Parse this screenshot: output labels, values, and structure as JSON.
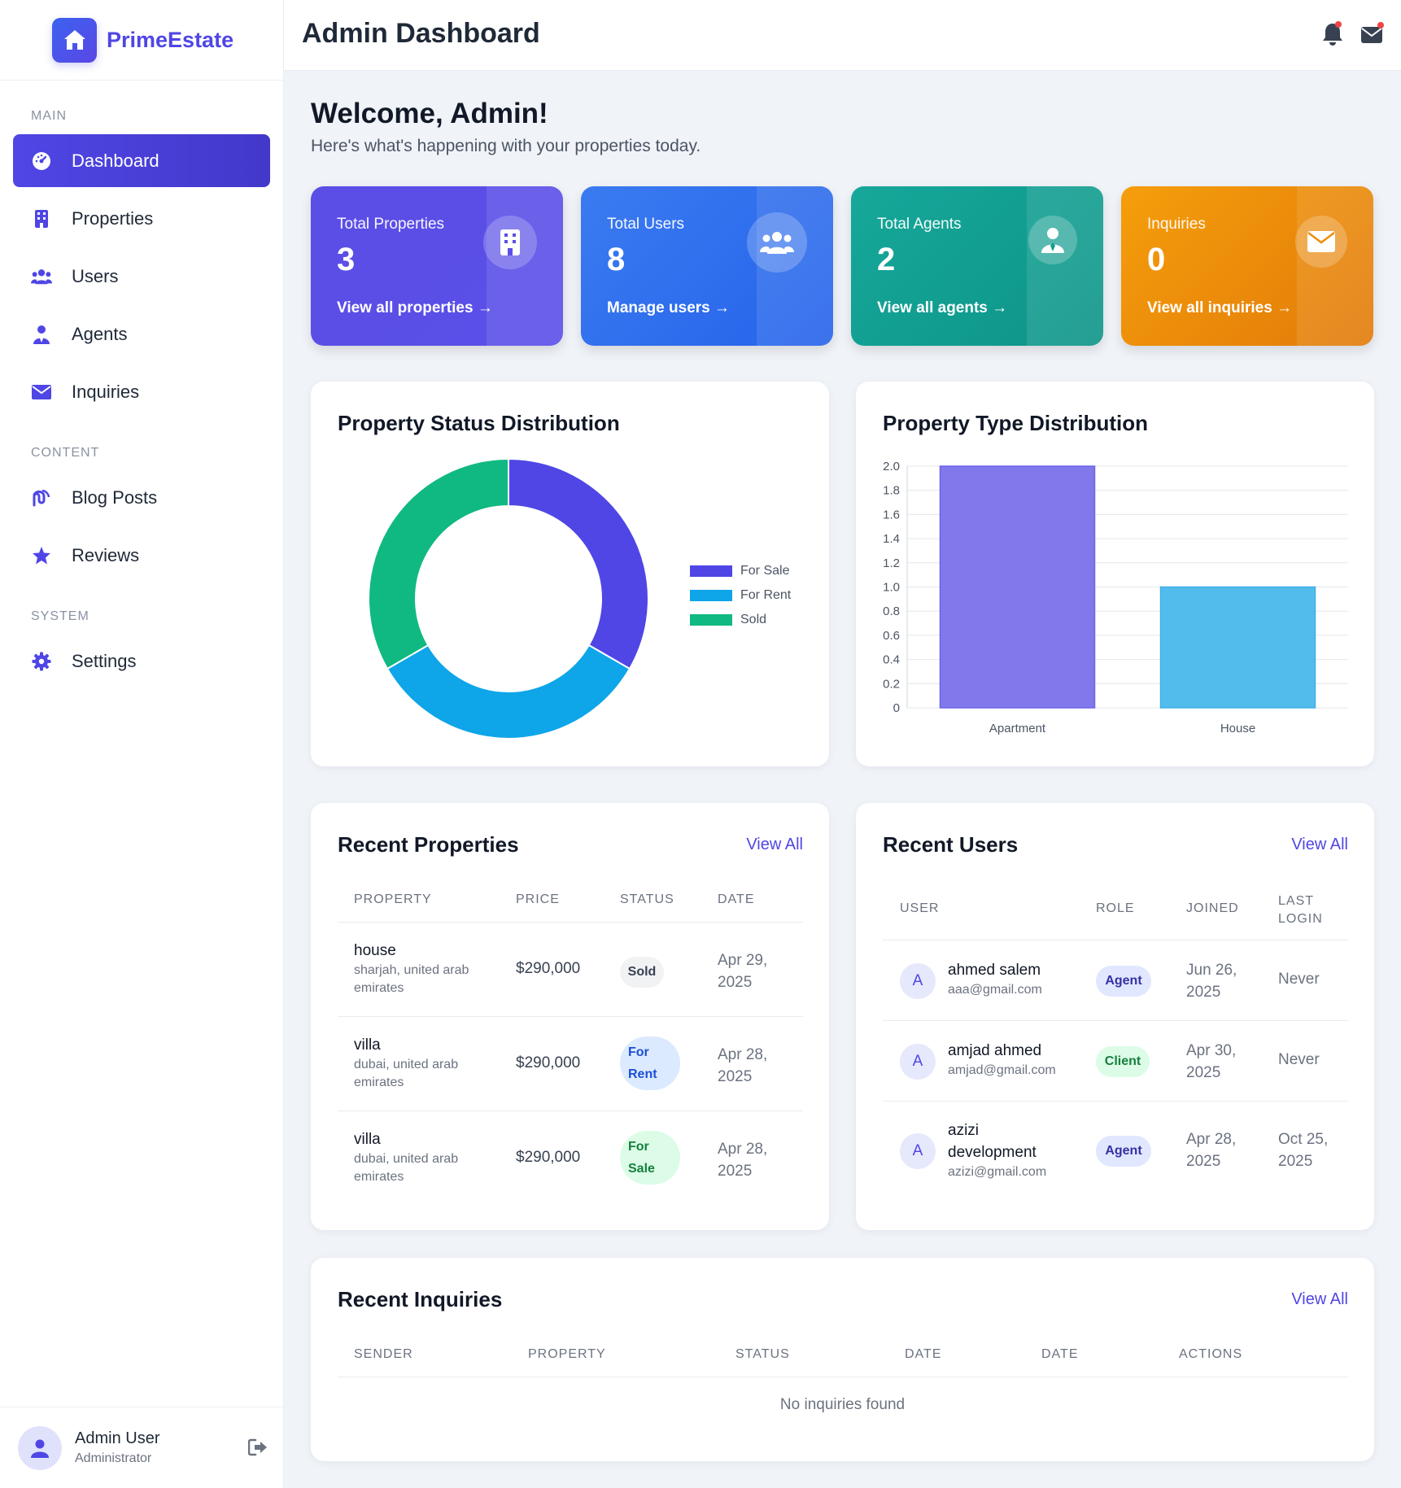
{
  "brand": {
    "name": "PrimeEstate"
  },
  "sidebar": {
    "sections": [
      {
        "title": "MAIN"
      },
      {
        "title": "CONTENT"
      },
      {
        "title": "SYSTEM"
      }
    ],
    "items": [
      {
        "label": "Dashboard",
        "icon": "dashboard-icon",
        "active": true
      },
      {
        "label": "Properties",
        "icon": "building-icon"
      },
      {
        "label": "Users",
        "icon": "users-icon"
      },
      {
        "label": "Agents",
        "icon": "agent-icon"
      },
      {
        "label": "Inquiries",
        "icon": "envelope-icon"
      },
      {
        "label": "Blog Posts",
        "icon": "blog-icon"
      },
      {
        "label": "Reviews",
        "icon": "star-icon"
      },
      {
        "label": "Settings",
        "icon": "gear-icon"
      }
    ],
    "footer": {
      "name": "Admin User",
      "role": "Administrator"
    }
  },
  "header": {
    "title": "Admin Dashboard"
  },
  "welcome": {
    "title": "Welcome, Admin!",
    "subtitle": "Here's what's happening with your properties today."
  },
  "stats": [
    {
      "label": "Total Properties",
      "value": "3",
      "link": "View all properties →",
      "color": "#5b4ee6"
    },
    {
      "label": "Total Users",
      "value": "8",
      "link": "Manage users →",
      "color": "#2f6fec"
    },
    {
      "label": "Total Agents",
      "value": "2",
      "link": "View all agents →",
      "color": "#14a08b"
    },
    {
      "label": "Inquiries",
      "value": "0",
      "link": "View all inquiries →",
      "color": "#ef8c0c"
    }
  ],
  "status_chart": {
    "title": "Property Status Distribution",
    "legend": [
      "For Sale",
      "For Rent",
      "Sold"
    ]
  },
  "type_chart": {
    "title": "Property Type Distribution"
  },
  "chart_data": [
    {
      "type": "pie",
      "title": "Property Status Distribution",
      "categories": [
        "For Sale",
        "For Rent",
        "Sold"
      ],
      "values": [
        1,
        1,
        1
      ],
      "colors": [
        "#4f46e5",
        "#0ea5e9",
        "#10b981"
      ],
      "legend": "right"
    },
    {
      "type": "bar",
      "title": "Property Type Distribution",
      "categories": [
        "Apartment",
        "House"
      ],
      "values": [
        2,
        1
      ],
      "colors": [
        "#8178ec",
        "#52bdec"
      ],
      "ylim": [
        0,
        2
      ],
      "yticks": [
        "0",
        "0.2",
        "0.4",
        "0.6",
        "0.8",
        "1.0",
        "1.2",
        "1.4",
        "1.6",
        "1.8",
        "2.0"
      ],
      "grid": true
    }
  ],
  "recent_properties": {
    "title": "Recent Properties",
    "view_all": "View All",
    "columns": [
      "PROPERTY",
      "PRICE",
      "STATUS",
      "DATE"
    ],
    "rows": [
      {
        "name": "house",
        "location_l1": "sharjah, united arab",
        "location_l2": "emirates",
        "price": "$290,000",
        "status_l1": "Sold",
        "status_l2": "",
        "date_l1": "Apr 29,",
        "date_l2": "2025"
      },
      {
        "name": "villa",
        "location_l1": "dubai, united arab",
        "location_l2": "emirates",
        "price": "$290,000",
        "status_l1": "For",
        "status_l2": "Rent",
        "date_l1": "Apr 28,",
        "date_l2": "2025"
      },
      {
        "name": "villa",
        "location_l1": "dubai, united arab",
        "location_l2": "emirates",
        "price": "$290,000",
        "status_l1": "For",
        "status_l2": "Sale",
        "date_l1": "Apr 28,",
        "date_l2": "2025"
      }
    ]
  },
  "recent_users": {
    "title": "Recent Users",
    "view_all": "View All",
    "columns": [
      "USER",
      "ROLE",
      "JOINED",
      "LAST",
      "LOGIN"
    ],
    "rows": [
      {
        "initial": "A",
        "name_l1": "ahmed salem",
        "name_l2": "",
        "email": "aaa@gmail.com",
        "role": "Agent",
        "joined_l1": "Jun 26,",
        "joined_l2": "2025",
        "last_l1": "Never",
        "last_l2": ""
      },
      {
        "initial": "A",
        "name_l1": "amjad ahmed",
        "name_l2": "",
        "email": "amjad@gmail.com",
        "role": "Client",
        "joined_l1": "Apr 30,",
        "joined_l2": "2025",
        "last_l1": "Never",
        "last_l2": ""
      },
      {
        "initial": "A",
        "name_l1": "azizi",
        "name_l2": "development",
        "email": "azizi@gmail.com",
        "role": "Agent",
        "joined_l1": "Apr 28,",
        "joined_l2": "2025",
        "last_l1": "Oct 25,",
        "last_l2": "2025"
      }
    ]
  },
  "recent_inquiries": {
    "title": "Recent Inquiries",
    "view_all": "View All",
    "columns": [
      "SENDER",
      "PROPERTY",
      "STATUS",
      "DATE",
      "DATE",
      "ACTIONS"
    ],
    "empty": "No inquiries found"
  }
}
